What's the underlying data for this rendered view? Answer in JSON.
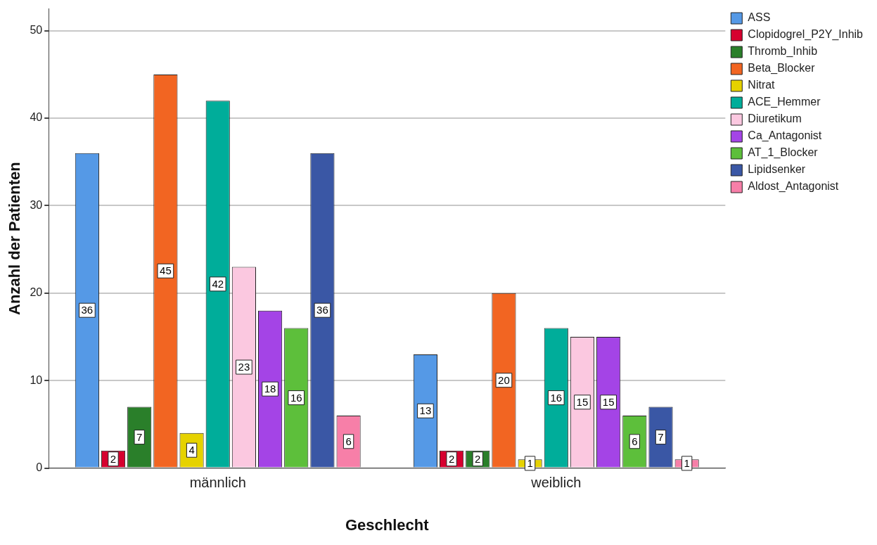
{
  "chart_data": {
    "type": "bar",
    "xlabel": "Geschlecht",
    "ylabel": "Anzahl der Patienten",
    "categories": [
      "männlich",
      "weiblich"
    ],
    "series": [
      {
        "name": "ASS",
        "color": "#5599e6",
        "values": [
          36,
          13
        ]
      },
      {
        "name": "Clopidogrel_P2Y_Inhib",
        "color": "#d6002f",
        "values": [
          2,
          2
        ]
      },
      {
        "name": "Thromb_Inhib",
        "color": "#2a7f2a",
        "values": [
          7,
          2
        ]
      },
      {
        "name": "Beta_Blocker",
        "color": "#f26522",
        "values": [
          45,
          20
        ]
      },
      {
        "name": "Nitrat",
        "color": "#e6d200",
        "values": [
          4,
          1
        ]
      },
      {
        "name": "ACE_Hemmer",
        "color": "#00ad9a",
        "values": [
          42,
          16
        ]
      },
      {
        "name": "Diuretikum",
        "color": "#fbc8e0",
        "values": [
          23,
          15
        ]
      },
      {
        "name": "Ca_Antagonist",
        "color": "#a444e6",
        "values": [
          18,
          15
        ]
      },
      {
        "name": "AT_1_Blocker",
        "color": "#5dbf3b",
        "values": [
          16,
          6
        ]
      },
      {
        "name": "Lipidsenker",
        "color": "#3a57a5",
        "values": [
          36,
          7
        ]
      },
      {
        "name": "Aldost_Antagonist",
        "color": "#f77fa8",
        "values": [
          6,
          1
        ]
      }
    ],
    "ylim": [
      0,
      52.5
    ],
    "yticks": [
      0,
      10,
      20,
      30,
      40,
      50
    ],
    "grid": "y",
    "legend": "top right",
    "data_labels": true
  }
}
